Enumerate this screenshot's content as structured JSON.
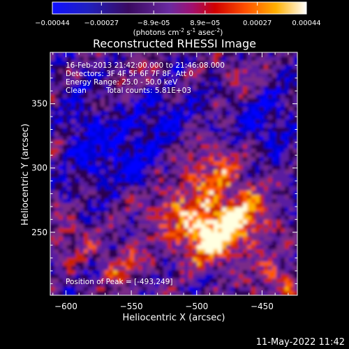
{
  "chart_data": {
    "type": "heatmap",
    "title": "Reconstructed RHESSI Image",
    "xlabel": "Heliocentric X (arcsec)",
    "ylabel": "Heliocentric Y (arcsec)",
    "xlim": [
      -612,
      -423
    ],
    "ylim": [
      201,
      390
    ],
    "xticks": [
      -600,
      -550,
      -500,
      -450
    ],
    "yticks": [
      250,
      300,
      350
    ],
    "colorbar": {
      "ticks": [
        -0.00044,
        -0.00027,
        -8.9e-05,
        8.9e-05,
        0.00027,
        0.00044
      ],
      "tick_labels": [
        "-0.00044",
        "-0.00027",
        "-8.9e-05",
        "8.9e-05",
        "0.00027",
        "0.00044"
      ],
      "range": [
        -0.00044,
        0.00044
      ],
      "unit_parts": [
        "(photons cm",
        "-2",
        " s",
        "-1",
        " asec",
        "-2",
        ")"
      ]
    },
    "annotations": {
      "time_range": "16-Feb-2013 21:42:00.000 to 21:46:08.000",
      "detectors": "Detectors: 3F 4F 5F 6F 7F 8F, Att 0",
      "energy_range": "Energy Range: 25.0 - 50.0 keV",
      "method": "Clean",
      "total_counts": "Total counts: 5.81E+03",
      "peak_position": "Position of Peak = [-493,249]"
    },
    "peak": {
      "x": -493,
      "y": 249
    },
    "grid": false,
    "colormap": [
      "#0000ff",
      "#0000cc",
      "#2a0050",
      "#5a1ea0",
      "#7a2a88",
      "#cc2000",
      "#ff5a00",
      "#ffb000",
      "#ffffe0"
    ]
  },
  "footer": {
    "timestamp": "11-May-2022 11:42"
  }
}
